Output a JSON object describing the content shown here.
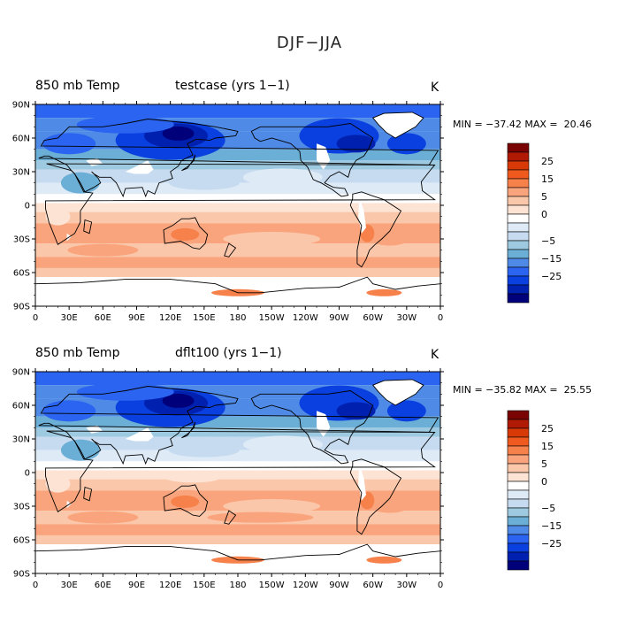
{
  "title": "DJF−JJA",
  "colorbar": {
    "labels": [
      "25",
      "15",
      "5",
      "0",
      "−5",
      "−15",
      "−25"
    ],
    "colors": [
      "#7a0403",
      "#b01a05",
      "#d73a06",
      "#f05a1e",
      "#f7814b",
      "#f9a47c",
      "#fbc7aa",
      "#fde3d3",
      "#ffffff",
      "#deebf7",
      "#c6dbef",
      "#9ecae1",
      "#6baed6",
      "#4f8be6",
      "#2a64f0",
      "#0a3fe0",
      "#0021b0",
      "#00007a"
    ]
  },
  "axes": {
    "lat_labels": [
      "90N",
      "60N",
      "30N",
      "0",
      "30S",
      "60S",
      "90S"
    ],
    "lon_labels": [
      "0",
      "30E",
      "60E",
      "90E",
      "120E",
      "150E",
      "180",
      "150W",
      "120W",
      "90W",
      "60W",
      "30W",
      "0"
    ]
  },
  "panels": [
    {
      "var_label": "850 mb Temp",
      "case_label": "testcase (yrs 1−1)",
      "units": "K",
      "stats": "MIN = −37.42 MAX =  20.46",
      "min": -37.42,
      "max": 20.46
    },
    {
      "var_label": "850 mb Temp",
      "case_label": "dflt100 (yrs 1−1)",
      "units": "K",
      "stats": "MIN = −35.82 MAX =  25.55",
      "min": -35.82,
      "max": 25.55
    }
  ]
}
